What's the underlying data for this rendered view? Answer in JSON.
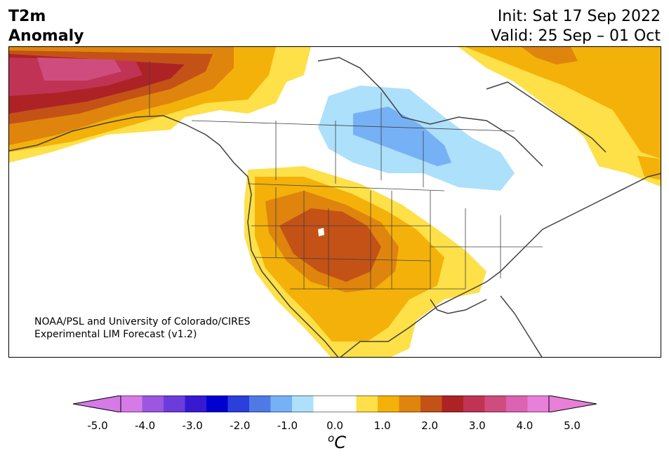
{
  "header": {
    "title_line1": "T2m",
    "title_line2": "Anomaly",
    "init_text": "Init: Sat 17 Sep 2022",
    "valid_text": "Valid: 25 Sep – 01 Oct"
  },
  "credit": {
    "line1": "NOAA/PSL and University of Colorado/CIRES",
    "line2": "Experimental LIM Forecast (v1.2)"
  },
  "colorbar": {
    "ticks": [
      "-5.0",
      "-4.0",
      "-3.0",
      "-2.0",
      "-1.0",
      "0.0",
      "1.0",
      "2.0",
      "3.0",
      "4.0",
      "5.0"
    ],
    "unit_super": "o",
    "unit_main": "C",
    "colors": [
      "#d67ae8",
      "#9b57e0",
      "#6c3bdc",
      "#3719d2",
      "#0000d0",
      "#2a3fdc",
      "#4f7ae6",
      "#77b1f5",
      "#ade0fb",
      "#ffffff",
      "#ffffff",
      "#fee048",
      "#f3b10a",
      "#df850d",
      "#c45216",
      "#ad2325",
      "#c13355",
      "#cf4d7e",
      "#dc63b2",
      "#e87fd9"
    ],
    "extend_min_color": "#d67ae8",
    "extend_max_color": "#e87fd9"
  },
  "map_colors": {
    "ocean": "#ffffff",
    "land_outline": "#404040",
    "light_blue": "#ade0fb",
    "mid_blue": "#77b1f5",
    "yellow": "#fee048",
    "gold": "#f3b10a",
    "orange": "#df850d",
    "dark_orange": "#c45216",
    "red": "#ad2325",
    "crimson": "#c13355",
    "pink": "#cf4d7e"
  }
}
